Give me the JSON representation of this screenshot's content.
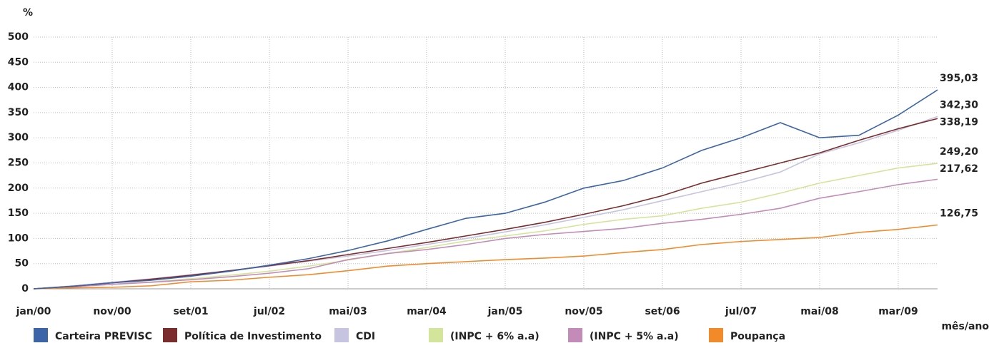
{
  "chart_data": {
    "type": "line",
    "y_axis_label": "%",
    "x_axis_label": "mês/ano",
    "categories": [
      "jan/00",
      null,
      "nov/00",
      null,
      "set/01",
      null,
      "jul/02",
      null,
      "mai/03",
      null,
      "mar/04",
      null,
      "jan/05",
      null,
      "nov/05",
      null,
      "set/06",
      null,
      "jul/07",
      null,
      "mai/08",
      null,
      "mar/09",
      null
    ],
    "ylim": [
      0,
      500
    ],
    "yticks": [
      0,
      50,
      100,
      150,
      200,
      250,
      300,
      350,
      400,
      450,
      500
    ],
    "grid": true,
    "series": [
      {
        "name": "Carteira PREVISC",
        "color": "#3b64a9",
        "values": [
          0,
          5,
          12,
          17,
          25,
          35,
          47,
          60,
          76,
          95,
          118,
          140,
          150,
          172,
          200,
          215,
          240,
          275,
          300,
          330,
          300,
          305,
          345,
          395.03
        ],
        "end_label": "395,03"
      },
      {
        "name": "Política de Investimento",
        "color": "#7b2c2c",
        "values": [
          0,
          5,
          12,
          19,
          27,
          36,
          46,
          56,
          68,
          80,
          92,
          105,
          118,
          132,
          148,
          165,
          185,
          210,
          230,
          250,
          270,
          295,
          318,
          338.19
        ],
        "end_label": "338,19"
      },
      {
        "name": "CDI",
        "color": "#c6c4e1",
        "values": [
          0,
          6,
          13,
          20,
          28,
          36,
          45,
          55,
          65,
          76,
          88,
          100,
          113,
          127,
          142,
          157,
          175,
          193,
          211,
          232,
          268,
          290,
          315,
          342.3
        ],
        "end_label": "342,30"
      },
      {
        "name": "(INPC + 6% a.a)",
        "color": "#d3e59a",
        "values": [
          0,
          4,
          9,
          14,
          20,
          27,
          35,
          45,
          57,
          70,
          82,
          95,
          105,
          115,
          128,
          138,
          145,
          160,
          172,
          190,
          210,
          225,
          240,
          249.2
        ],
        "end_label": "249,20"
      },
      {
        "name": "(INPC + 5% a.a)",
        "color": "#c48bb8",
        "values": [
          0,
          4,
          9,
          13,
          18,
          24,
          31,
          40,
          58,
          70,
          78,
          88,
          100,
          108,
          114,
          120,
          130,
          138,
          148,
          160,
          180,
          193,
          207,
          217.62
        ],
        "end_label": "217,62"
      },
      {
        "name": "Poupança",
        "color": "#f28a2a",
        "values": [
          0,
          2,
          3,
          6,
          14,
          17,
          23,
          28,
          36,
          45,
          50,
          54,
          58,
          61,
          65,
          72,
          78,
          88,
          94,
          98,
          102,
          112,
          118,
          126.75
        ],
        "end_label": "126,75"
      }
    ]
  }
}
